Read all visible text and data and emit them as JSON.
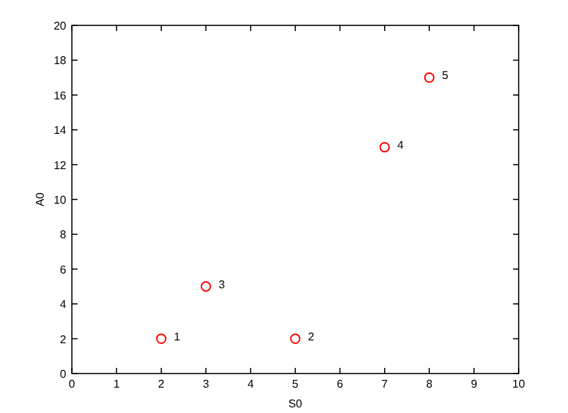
{
  "chart_data": {
    "type": "scatter",
    "xlabel": "S0",
    "ylabel": "A0",
    "x": [
      2,
      5,
      3,
      7,
      8
    ],
    "series": [
      {
        "color": "#ff0000",
        "values": [
          2,
          2,
          5,
          13,
          17
        ]
      }
    ],
    "marker": "circle",
    "grid": false,
    "xlim": [
      0,
      10
    ],
    "xticks": [
      0,
      1,
      2,
      3,
      4,
      5,
      6,
      7,
      8,
      9,
      10
    ],
    "ylim": [
      0,
      20
    ],
    "yticks": [
      0,
      2,
      4,
      6,
      8,
      10,
      12,
      14,
      16,
      18,
      20
    ],
    "annotations": [
      {
        "text": "1",
        "x": 2,
        "y": 2
      },
      {
        "text": "2",
        "x": 5,
        "y": 2
      },
      {
        "text": "3",
        "x": 3,
        "y": 5
      },
      {
        "text": "4",
        "x": 7,
        "y": 13
      },
      {
        "text": "5",
        "x": 8,
        "y": 17
      }
    ]
  }
}
